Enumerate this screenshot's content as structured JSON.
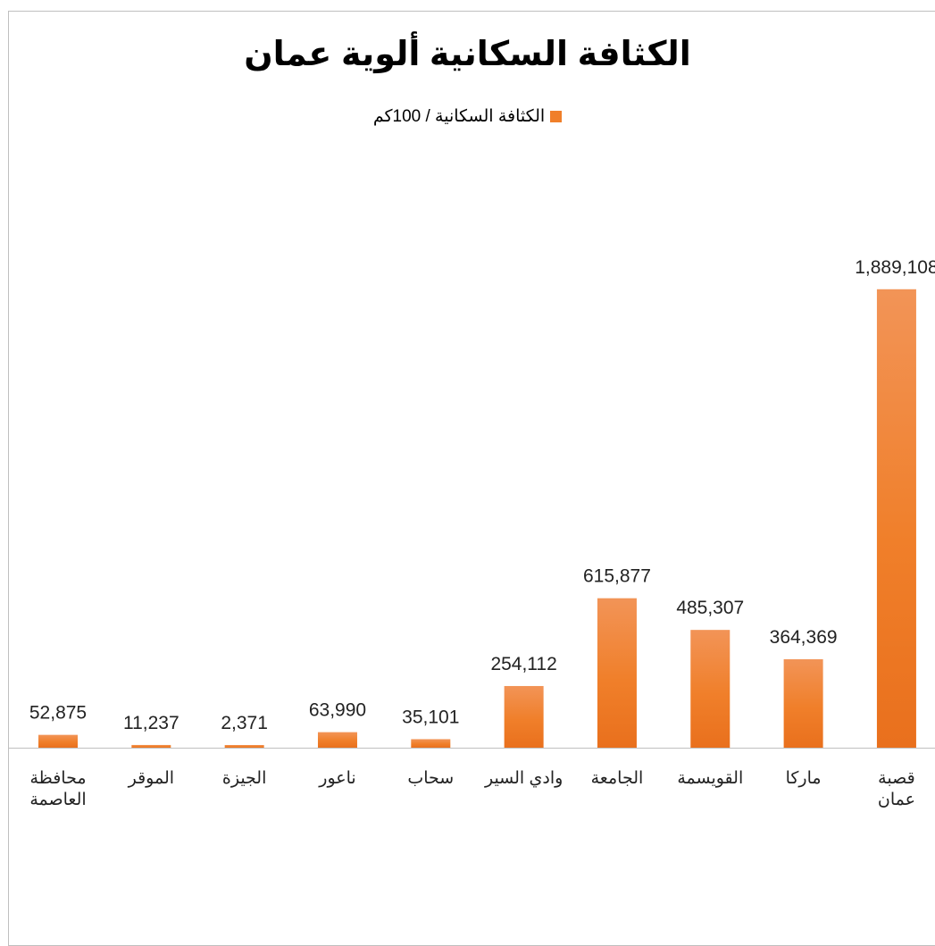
{
  "chart_data": {
    "type": "bar",
    "title": "الكثافة السكانية ألوية عمان",
    "legend": {
      "position": "top",
      "entries": [
        "الكثافة السكانية / 100كم"
      ]
    },
    "series": [
      {
        "name": "الكثافة السكانية / 100كم",
        "color": "#f07f2a",
        "values": [
          52875,
          11237,
          2371,
          63990,
          35101,
          254112,
          615877,
          485307,
          364369,
          1889108
        ]
      }
    ],
    "categories": [
      [
        "محافظة",
        "العاصمة"
      ],
      [
        "الموقر"
      ],
      [
        "الجيزة"
      ],
      [
        "ناعور"
      ],
      [
        "سحاب"
      ],
      [
        "وادي السير"
      ],
      [
        "الجامعة"
      ],
      [
        "القويسمة"
      ],
      [
        "ماركا"
      ],
      [
        "قصبة",
        "عمان"
      ]
    ],
    "data_labels": [
      "52,875",
      "11,237",
      "2,371",
      "63,990",
      "35,101",
      "254,112",
      "615,877",
      "485,307",
      "364,369",
      "1,889,108"
    ],
    "ylim": [
      0,
      2400000
    ],
    "grid": false
  }
}
